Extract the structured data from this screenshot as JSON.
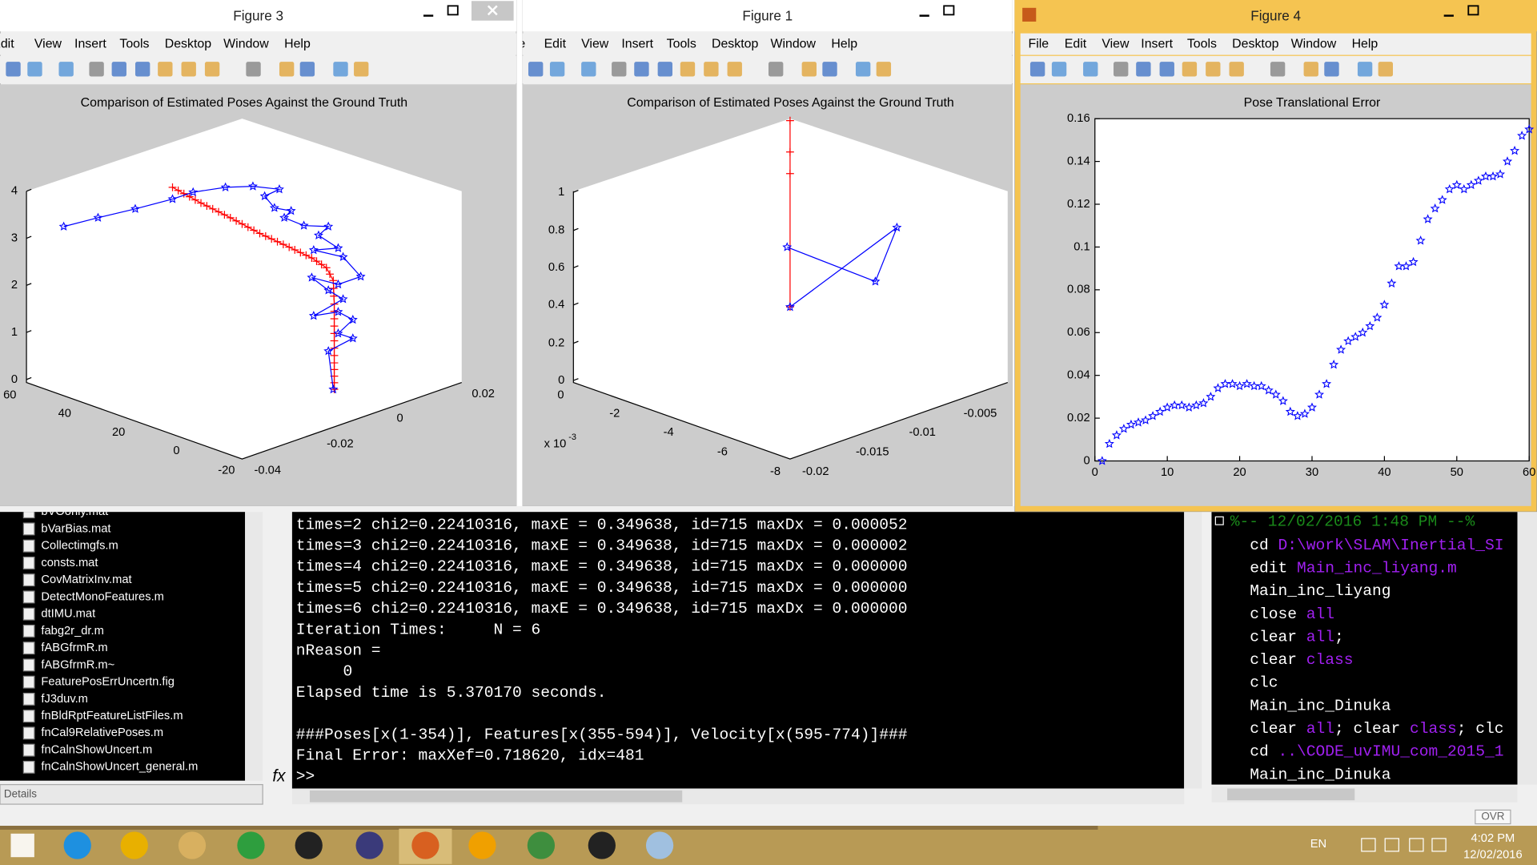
{
  "figures": [
    {
      "title": "Figure 3",
      "menu": [
        "Edit",
        "View",
        "Insert",
        "Tools",
        "Desktop",
        "Window",
        "Help"
      ],
      "plot_title": "Comparison of Estimated Poses Against the Ground Truth",
      "z_ticks": [
        "0",
        "1",
        "2",
        "3",
        "4"
      ],
      "x_ticks": [
        "60",
        "40",
        "20",
        "0",
        "-20"
      ],
      "y_ticks": [
        "-0.04",
        "-0.02",
        "0",
        "0.02"
      ]
    },
    {
      "title": "Figure 1",
      "menu": [
        "File",
        "Edit",
        "View",
        "Insert",
        "Tools",
        "Desktop",
        "Window",
        "Help"
      ],
      "plot_title": "Comparison of Estimated Poses Against the Ground Truth",
      "z_ticks": [
        "0",
        "0.2",
        "0.4",
        "0.6",
        "0.8",
        "1"
      ],
      "x_ticks": [
        "0",
        "-2",
        "-4",
        "-6",
        "-8"
      ],
      "x_exponent": "x 10",
      "x_exponent_power": "-3",
      "y_ticks": [
        "-0.02",
        "-0.015",
        "-0.01",
        "-0.005"
      ]
    },
    {
      "title": "Figure 4",
      "menu": [
        "File",
        "Edit",
        "View",
        "Insert",
        "Tools",
        "Desktop",
        "Window",
        "Help"
      ],
      "chart_data": {
        "type": "scatter",
        "title": "Pose Translational Error",
        "marker": "star",
        "color": "#0000ff",
        "x": [
          1,
          2,
          3,
          4,
          5,
          6,
          7,
          8,
          9,
          10,
          11,
          12,
          13,
          14,
          15,
          16,
          17,
          18,
          19,
          20,
          21,
          22,
          23,
          24,
          25,
          26,
          27,
          28,
          29,
          30,
          31,
          32,
          33,
          34,
          35,
          36,
          37,
          38,
          39,
          40,
          41,
          42,
          43,
          44,
          45,
          46,
          47,
          48,
          49,
          50,
          51,
          52,
          53,
          54,
          55,
          56,
          57,
          58,
          59,
          60
        ],
        "values": [
          0,
          0.008,
          0.012,
          0.015,
          0.017,
          0.018,
          0.019,
          0.021,
          0.023,
          0.025,
          0.026,
          0.026,
          0.025,
          0.026,
          0.027,
          0.03,
          0.034,
          0.036,
          0.036,
          0.035,
          0.036,
          0.035,
          0.035,
          0.033,
          0.031,
          0.028,
          0.023,
          0.021,
          0.022,
          0.025,
          0.031,
          0.036,
          0.045,
          0.052,
          0.056,
          0.058,
          0.06,
          0.063,
          0.067,
          0.073,
          0.083,
          0.091,
          0.091,
          0.093,
          0.103,
          0.113,
          0.118,
          0.122,
          0.127,
          0.129,
          0.127,
          0.129,
          0.131,
          0.133,
          0.133,
          0.134,
          0.14,
          0.145,
          0.152,
          0.155
        ],
        "xlim": [
          0,
          60
        ],
        "ylim": [
          0,
          0.16
        ],
        "xticks": [
          0,
          10,
          20,
          30,
          40,
          50,
          60
        ],
        "yticks": [
          0,
          0.02,
          0.04,
          0.06,
          0.08,
          0.1,
          0.12,
          0.14,
          0.16
        ]
      }
    }
  ],
  "file_browser": {
    "files": [
      "bVOonly.mat",
      "bVarBias.mat",
      "Collectimgfs.m",
      "consts.mat",
      "CovMatrixInv.mat",
      "DetectMonoFeatures.m",
      "dtIMU.mat",
      "fabg2r_dr.m",
      "fABGfrmR.m",
      "fABGfrmR.m~",
      "FeaturePosErrUncertn.fig",
      "fJ3duv.m",
      "fnBldRptFeatureListFiles.m",
      "fnCal9RelativePoses.m",
      "fnCalnShowUncert.m",
      "fnCalnShowUncert_general.m"
    ],
    "details": "Details"
  },
  "command_window": {
    "lines": [
      "times=2 chi2=0.22410316, maxE = 0.349638, id=715 maxDx = 0.000052",
      "times=3 chi2=0.22410316, maxE = 0.349638, id=715 maxDx = 0.000002",
      "times=4 chi2=0.22410316, maxE = 0.349638, id=715 maxDx = 0.000000",
      "times=5 chi2=0.22410316, maxE = 0.349638, id=715 maxDx = 0.000000",
      "times=6 chi2=0.22410316, maxE = 0.349638, id=715 maxDx = 0.000000",
      "Iteration Times:     N = 6",
      "nReason =",
      "     0",
      "Elapsed time is 5.370170 seconds.",
      "###Poses[x(1-354)], Features[x(355-594)], Velocity[x(595-774)]###",
      "Final Error: maxXef=0.718620, idx=481"
    ],
    "prompt": ">>",
    "fx": "fx"
  },
  "command_history": {
    "header": "%-- 12/02/2016 1:48 PM --%",
    "entries": [
      [
        "cd ",
        "D:\\work\\SLAM\\Inertial_SI"
      ],
      [
        "edit ",
        "Main_inc_liyang.m"
      ],
      [
        "Main_inc_liyang"
      ],
      [
        "close ",
        "all"
      ],
      [
        "clear ",
        "all",
        ";"
      ],
      [
        "clear ",
        "class"
      ],
      [
        "clc"
      ],
      [
        "Main_inc_Dinuka"
      ],
      [
        "clear ",
        "all",
        "; clear ",
        "class",
        "; clc"
      ],
      [
        "cd ",
        "..\\CODE_uvIMU_com_2015_1"
      ],
      [
        "Main_inc_Dinuka"
      ]
    ]
  },
  "status": {
    "ovr": "OVR"
  },
  "taskbar": {
    "language": "EN",
    "time": "4:02 PM",
    "date": "12/02/2016"
  }
}
